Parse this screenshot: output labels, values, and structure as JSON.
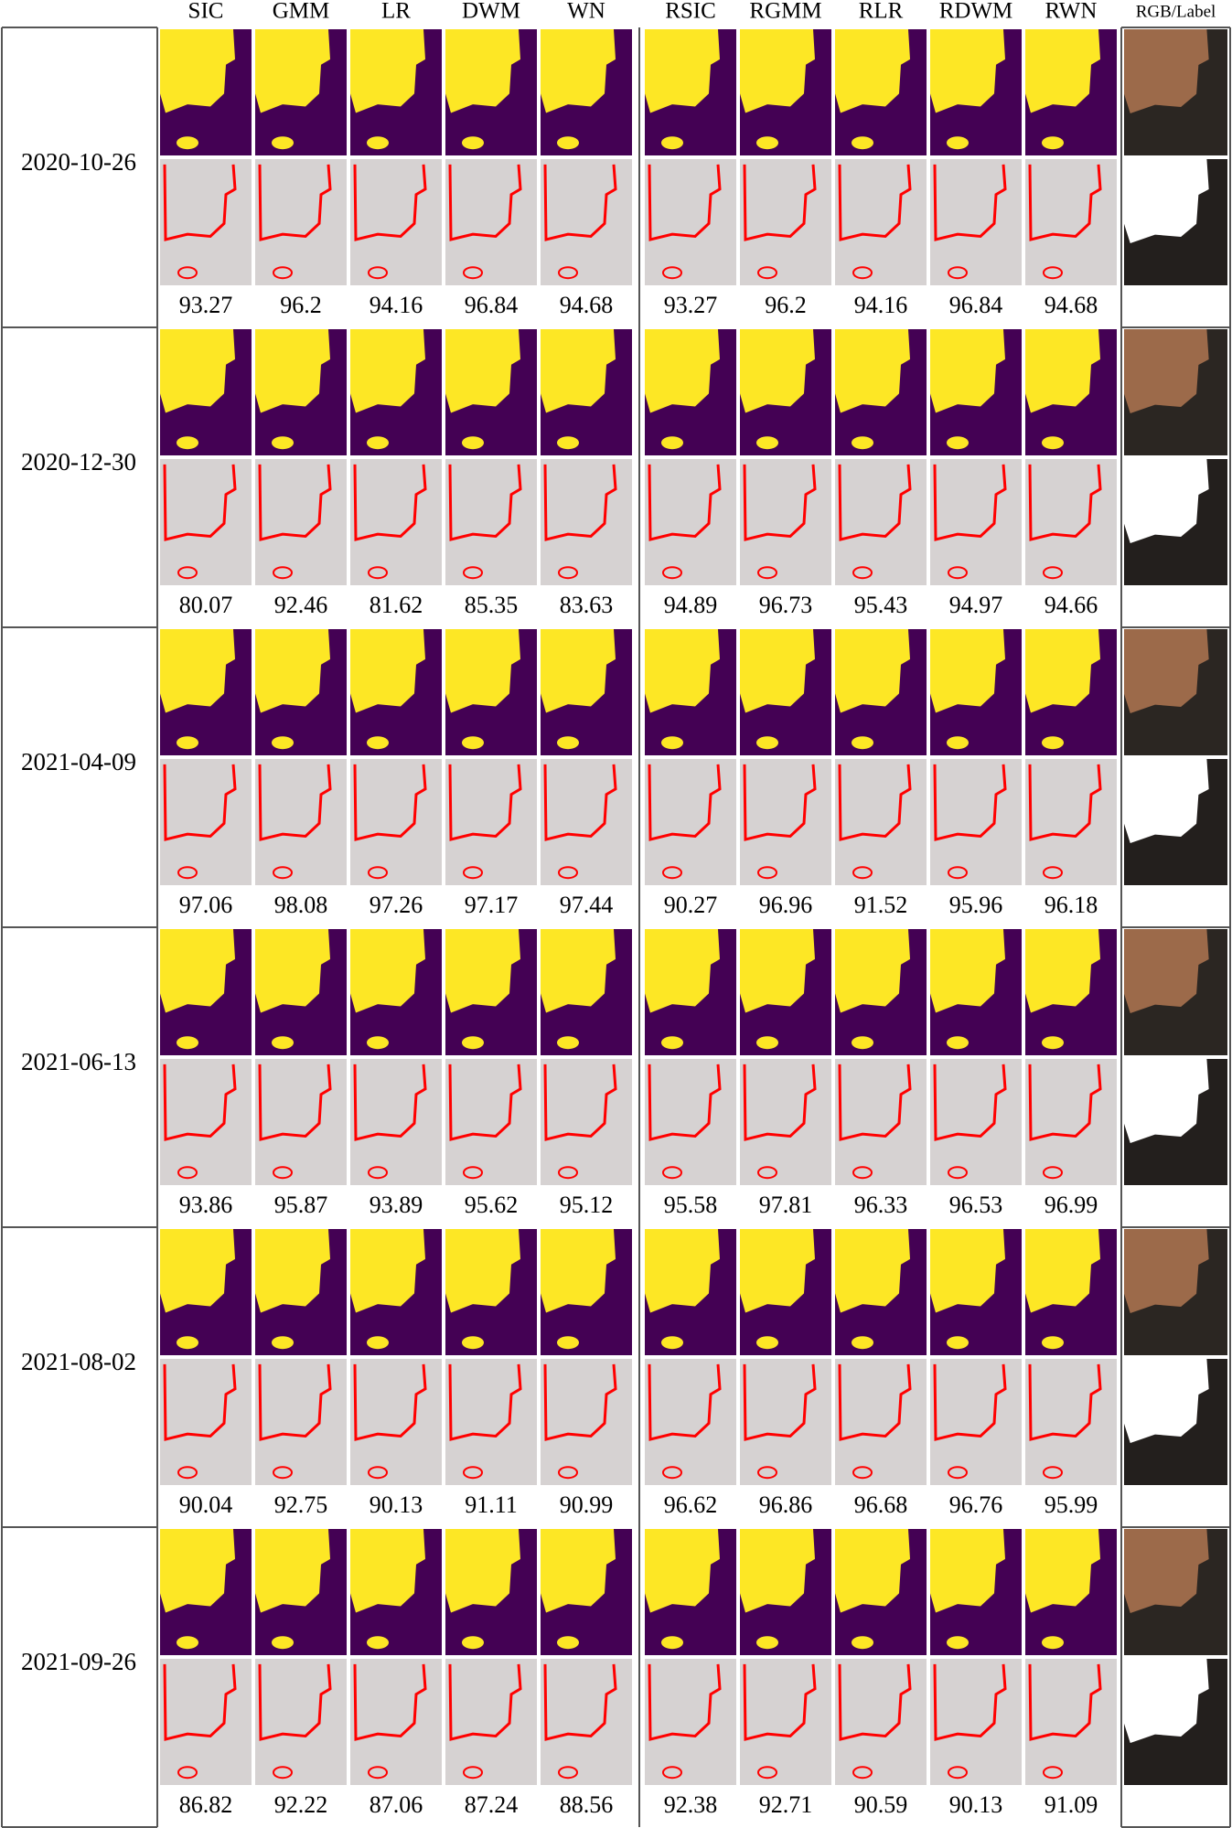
{
  "columns": [
    "SIC",
    "GMM",
    "LR",
    "DWM",
    "WN",
    "RSIC",
    "RGMM",
    "RLR",
    "RDWM",
    "RWN",
    "RGB/Label"
  ],
  "rows": [
    {
      "date": "2020-10-26",
      "scores": [
        93.27,
        96.2,
        94.16,
        96.84,
        94.68,
        93.27,
        96.2,
        94.16,
        96.84,
        94.68
      ]
    },
    {
      "date": "2020-12-30",
      "scores": [
        80.07,
        92.46,
        81.62,
        85.35,
        83.63,
        94.89,
        96.73,
        95.43,
        94.97,
        94.66
      ]
    },
    {
      "date": "2021-04-09",
      "scores": [
        97.06,
        98.08,
        97.26,
        97.17,
        97.44,
        90.27,
        96.96,
        91.52,
        95.96,
        96.18
      ]
    },
    {
      "date": "2021-06-13",
      "scores": [
        93.86,
        95.87,
        93.89,
        95.62,
        95.12,
        95.58,
        97.81,
        96.33,
        96.53,
        96.99
      ]
    },
    {
      "date": "2021-08-02",
      "scores": [
        90.04,
        92.75,
        90.13,
        91.11,
        90.99,
        96.62,
        96.86,
        96.68,
        96.76,
        95.99
      ]
    },
    {
      "date": "2021-09-26",
      "scores": [
        86.82,
        92.22,
        87.06,
        87.24,
        88.56,
        92.38,
        92.71,
        90.59,
        90.13,
        91.09
      ]
    }
  ]
}
